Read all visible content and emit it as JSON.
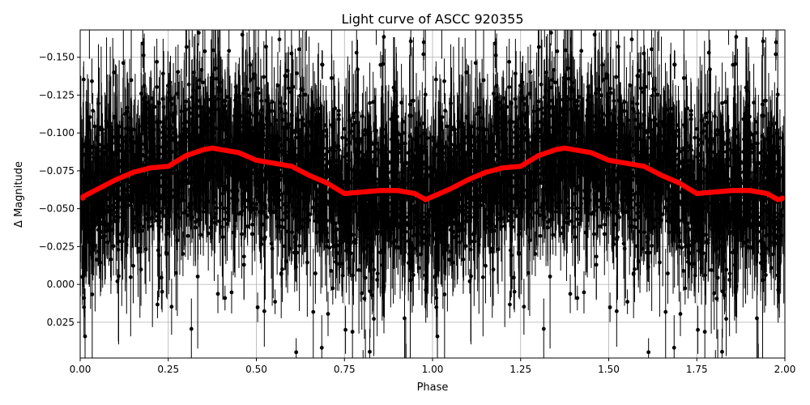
{
  "chart_data": {
    "type": "scatter",
    "title": "Light curve of ASCC 920355",
    "xlabel": "Phase",
    "ylabel": "Δ Magnitude",
    "xlim": [
      0.0,
      2.0
    ],
    "ylim": [
      0.0486,
      -0.168
    ],
    "y_inverted": true,
    "grid": true,
    "x_ticks": [
      "0.00",
      "0.25",
      "0.50",
      "0.75",
      "1.00",
      "1.25",
      "1.50",
      "1.75",
      "2.00"
    ],
    "y_ticks": [
      "−0.150",
      "−0.125",
      "−0.100",
      "−0.075",
      "−0.050",
      "−0.025",
      "0.000",
      "0.025"
    ],
    "y_tick_values": [
      -0.15,
      -0.125,
      -0.1,
      -0.075,
      -0.05,
      -0.025,
      0.0,
      0.025
    ],
    "x_tick_values": [
      0,
      0.25,
      0.5,
      0.75,
      1.0,
      1.25,
      1.5,
      1.75,
      2.0
    ],
    "series": [
      {
        "role": "observations with error bars",
        "color": "#000000",
        "marker": "circle",
        "typical_range": [
          -0.1,
          -0.03
        ]
      },
      {
        "role": "binned curve",
        "color": "#ff0000",
        "x": [
          0.0,
          0.05,
          0.1,
          0.15,
          0.2,
          0.25,
          0.3,
          0.35,
          0.375,
          0.4,
          0.45,
          0.5,
          0.55,
          0.6,
          0.65,
          0.7,
          0.75,
          0.8,
          0.85,
          0.9,
          0.95,
          0.98,
          1.0,
          1.05,
          1.1,
          1.15,
          1.2,
          1.25,
          1.3,
          1.35,
          1.375,
          1.4,
          1.45,
          1.5,
          1.55,
          1.6,
          1.65,
          1.7,
          1.75,
          1.8,
          1.85,
          1.9,
          1.95,
          1.98,
          2.0
        ],
        "y": [
          -0.057,
          -0.063,
          -0.069,
          -0.074,
          -0.077,
          -0.078,
          -0.085,
          -0.089,
          -0.09,
          -0.089,
          -0.087,
          -0.082,
          -0.08,
          -0.078,
          -0.072,
          -0.067,
          -0.06,
          -0.061,
          -0.062,
          -0.062,
          -0.06,
          -0.056,
          -0.058,
          -0.063,
          -0.069,
          -0.074,
          -0.077,
          -0.078,
          -0.085,
          -0.089,
          -0.09,
          -0.089,
          -0.087,
          -0.082,
          -0.08,
          -0.078,
          -0.072,
          -0.067,
          -0.06,
          -0.061,
          -0.062,
          -0.062,
          -0.06,
          -0.056,
          -0.057
        ]
      }
    ]
  }
}
